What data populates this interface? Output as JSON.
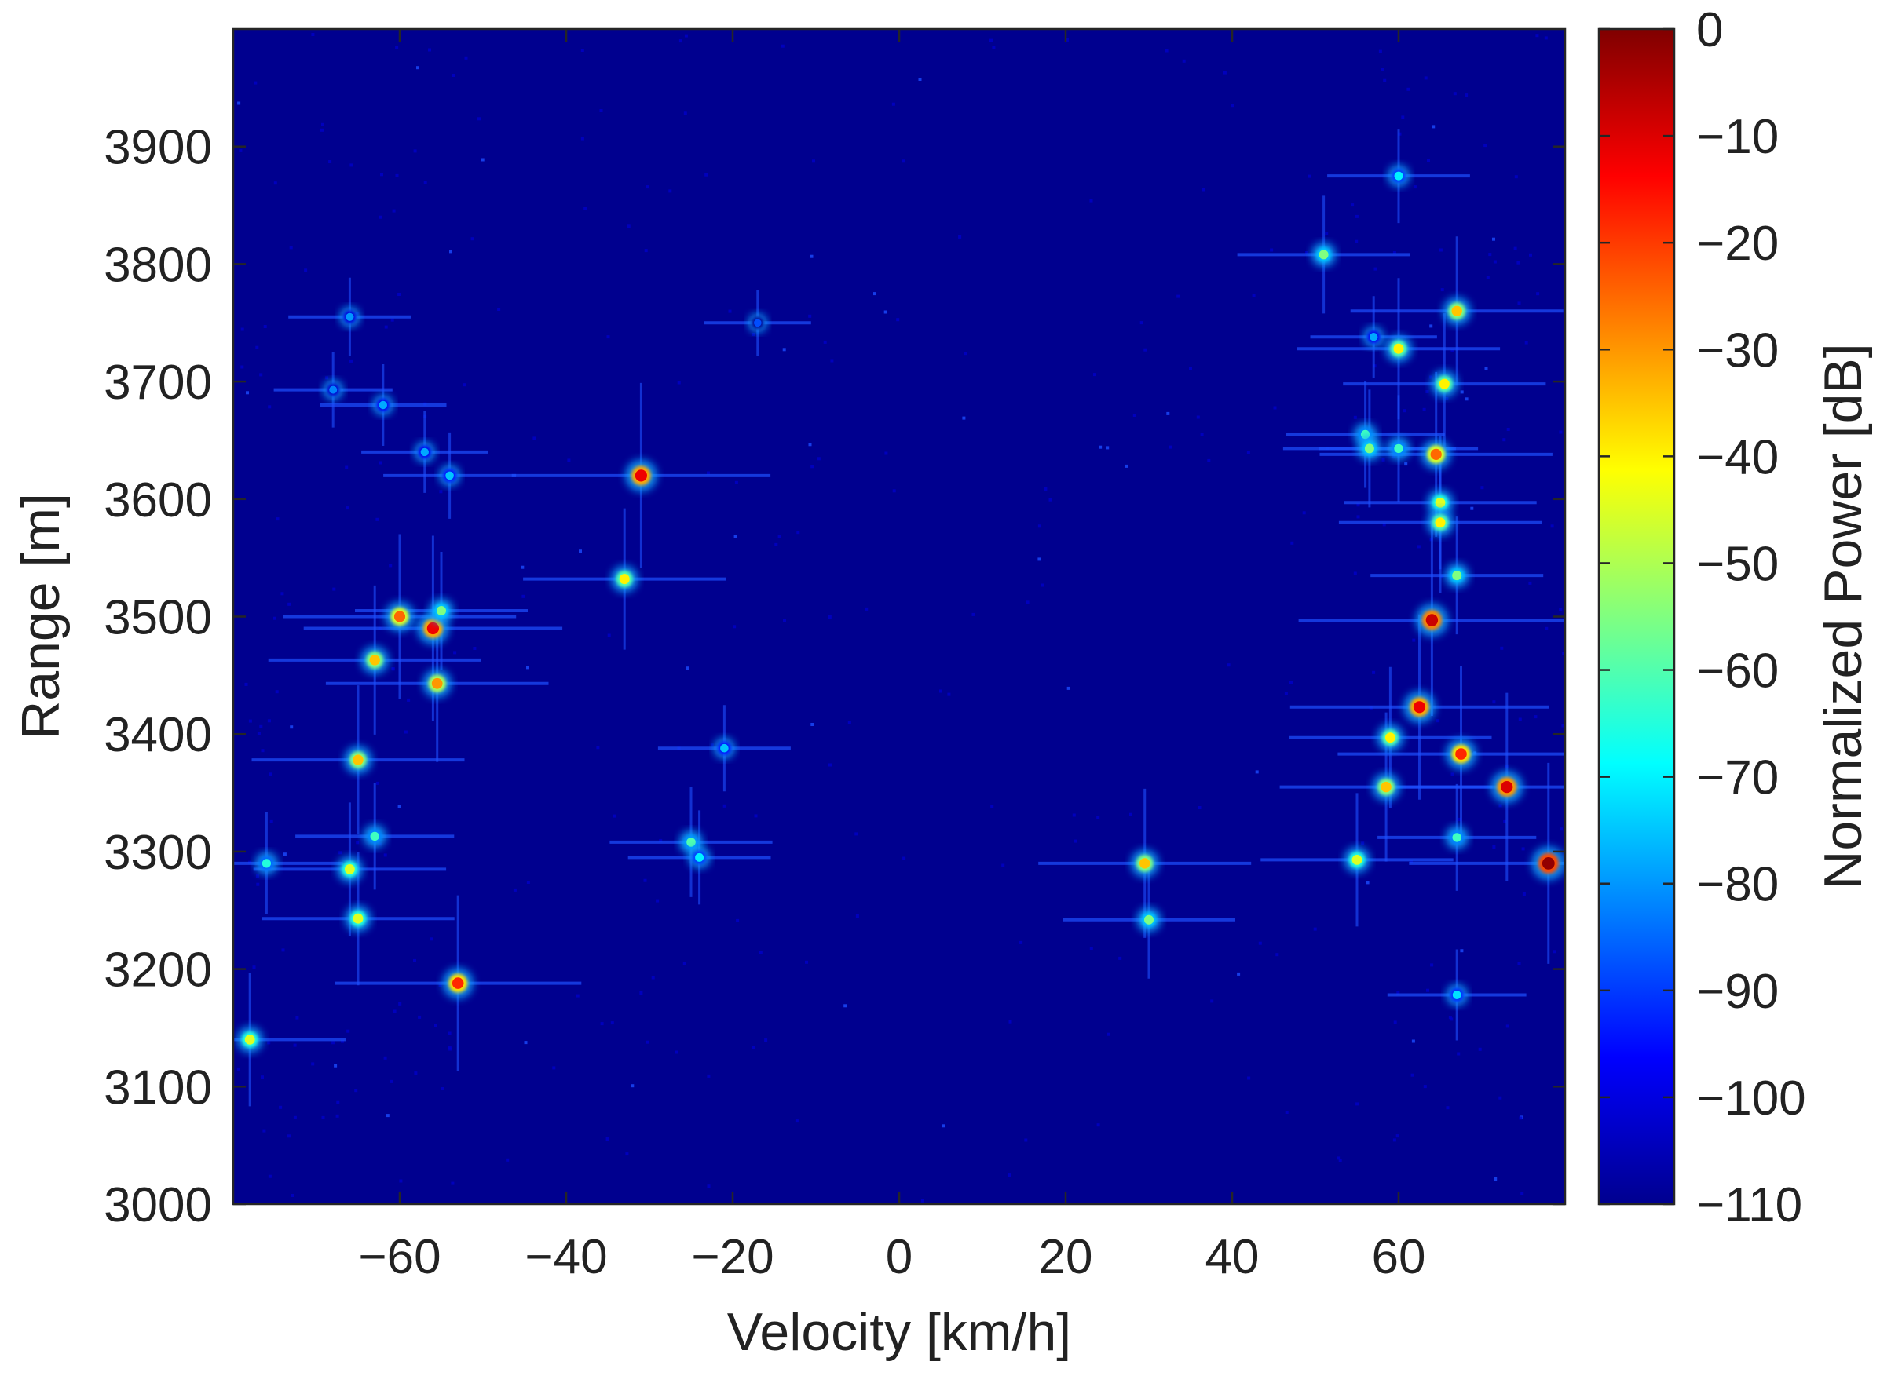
{
  "chart_data": {
    "type": "heatmap",
    "title": "",
    "xlabel": "Velocity [km/h]",
    "ylabel": "Range [m]",
    "xlim": [
      -80,
      80
    ],
    "ylim": [
      3000,
      4000
    ],
    "x_ticks": [
      -60,
      -40,
      -20,
      0,
      20,
      40,
      60
    ],
    "x_tick_labels": [
      "−60",
      "−40",
      "−20",
      "0",
      "20",
      "40",
      "60"
    ],
    "y_ticks": [
      3000,
      3100,
      3200,
      3300,
      3400,
      3500,
      3600,
      3700,
      3800,
      3900
    ],
    "y_tick_labels": [
      "3000",
      "3100",
      "3200",
      "3300",
      "3400",
      "3500",
      "3600",
      "3700",
      "3800",
      "3900"
    ],
    "grid": false,
    "colormap": "jet",
    "background_color": "#00008f",
    "colorbar": {
      "label": "Normalized Power [dB]",
      "range": [
        -110,
        0
      ],
      "placement": "right",
      "ticks": [
        0,
        -10,
        -20,
        -30,
        -40,
        -50,
        -60,
        -70,
        -80,
        -90,
        -100,
        -110
      ],
      "tick_labels": [
        "0",
        "−10",
        "−20",
        "−30",
        "−40",
        "−50",
        "−60",
        "−70",
        "−80",
        "−90",
        "−100",
        "−110"
      ]
    },
    "targets": [
      {
        "v": -78,
        "r": 3140,
        "p": -45
      },
      {
        "v": -76,
        "r": 3290,
        "p": -65
      },
      {
        "v": -66,
        "r": 3285,
        "p": -45
      },
      {
        "v": -65,
        "r": 3243,
        "p": -45
      },
      {
        "v": -65,
        "r": 3378,
        "p": -35
      },
      {
        "v": -63,
        "r": 3313,
        "p": -62
      },
      {
        "v": -63,
        "r": 3463,
        "p": -35
      },
      {
        "v": -60,
        "r": 3500,
        "p": -25
      },
      {
        "v": -56,
        "r": 3490,
        "p": -12
      },
      {
        "v": -55.5,
        "r": 3443,
        "p": -30
      },
      {
        "v": -55,
        "r": 3505,
        "p": -55
      },
      {
        "v": -53,
        "r": 3188,
        "p": -18
      },
      {
        "v": -54,
        "r": 3620,
        "p": -75
      },
      {
        "v": -57,
        "r": 3640,
        "p": -78
      },
      {
        "v": -62,
        "r": 3680,
        "p": -78
      },
      {
        "v": -66,
        "r": 3755,
        "p": -80
      },
      {
        "v": -68,
        "r": 3693,
        "p": -82
      },
      {
        "v": -31,
        "r": 3620,
        "p": -12
      },
      {
        "v": -33,
        "r": 3532,
        "p": -40
      },
      {
        "v": -25,
        "r": 3308,
        "p": -60
      },
      {
        "v": -21,
        "r": 3388,
        "p": -75
      },
      {
        "v": -24,
        "r": 3295,
        "p": -70
      },
      {
        "v": -17,
        "r": 3750,
        "p": -88
      },
      {
        "v": 29.5,
        "r": 3290,
        "p": -35
      },
      {
        "v": 30,
        "r": 3242,
        "p": -55
      },
      {
        "v": 51,
        "r": 3808,
        "p": -55
      },
      {
        "v": 55,
        "r": 3293,
        "p": -45
      },
      {
        "v": 56,
        "r": 3655,
        "p": -62
      },
      {
        "v": 56.5,
        "r": 3643,
        "p": -55
      },
      {
        "v": 57,
        "r": 3738,
        "p": -78
      },
      {
        "v": 58.5,
        "r": 3355,
        "p": -35
      },
      {
        "v": 59,
        "r": 3397,
        "p": -40
      },
      {
        "v": 60,
        "r": 3875,
        "p": -70
      },
      {
        "v": 60,
        "r": 3728,
        "p": -40
      },
      {
        "v": 60,
        "r": 3643,
        "p": -62
      },
      {
        "v": 62.5,
        "r": 3423,
        "p": -12
      },
      {
        "v": 64,
        "r": 3497,
        "p": -8
      },
      {
        "v": 64.5,
        "r": 3638,
        "p": -25
      },
      {
        "v": 65,
        "r": 3597,
        "p": -45
      },
      {
        "v": 65,
        "r": 3580,
        "p": -40
      },
      {
        "v": 65.5,
        "r": 3698,
        "p": -40
      },
      {
        "v": 67,
        "r": 3760,
        "p": -35
      },
      {
        "v": 67,
        "r": 3535,
        "p": -55
      },
      {
        "v": 67,
        "r": 3312,
        "p": -62
      },
      {
        "v": 67,
        "r": 3178,
        "p": -72
      },
      {
        "v": 67.5,
        "r": 3383,
        "p": -18
      },
      {
        "v": 73,
        "r": 3355,
        "p": -10
      },
      {
        "v": 78,
        "r": 3290,
        "p": -2
      }
    ]
  }
}
